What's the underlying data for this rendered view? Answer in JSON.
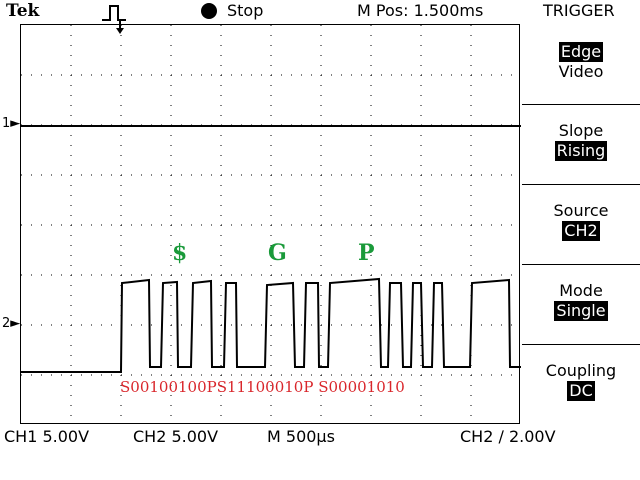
{
  "header": {
    "brand": "Tek",
    "run_state": "Stop",
    "m_pos": "M Pos: 1.500ms",
    "menu_title": "TRIGGER"
  },
  "channel_markers": {
    "ch1": "1",
    "ch2": "2"
  },
  "annotations": {
    "chars": [
      "$",
      "G",
      "P"
    ],
    "decode": "S00100100PS11100010P S00001010"
  },
  "trigger_menu": {
    "type_options": [
      "Edge",
      "Video"
    ],
    "type_selected": "Edge",
    "slope_label": "Slope",
    "slope_value": "Rising",
    "source_label": "Source",
    "source_value": "CH2",
    "mode_label": "Mode",
    "mode_value": "Single",
    "coupling_label": "Coupling",
    "coupling_value": "DC"
  },
  "status": {
    "ch1": "CH1  5.00V",
    "ch2": "CH2  5.00V",
    "timebase": "M  500µs",
    "trigger": "CH2  ∕  2.00V"
  },
  "colors": {
    "annotation": "#1a9a3a",
    "decode": "#d9262b",
    "trace": "#000000"
  }
}
